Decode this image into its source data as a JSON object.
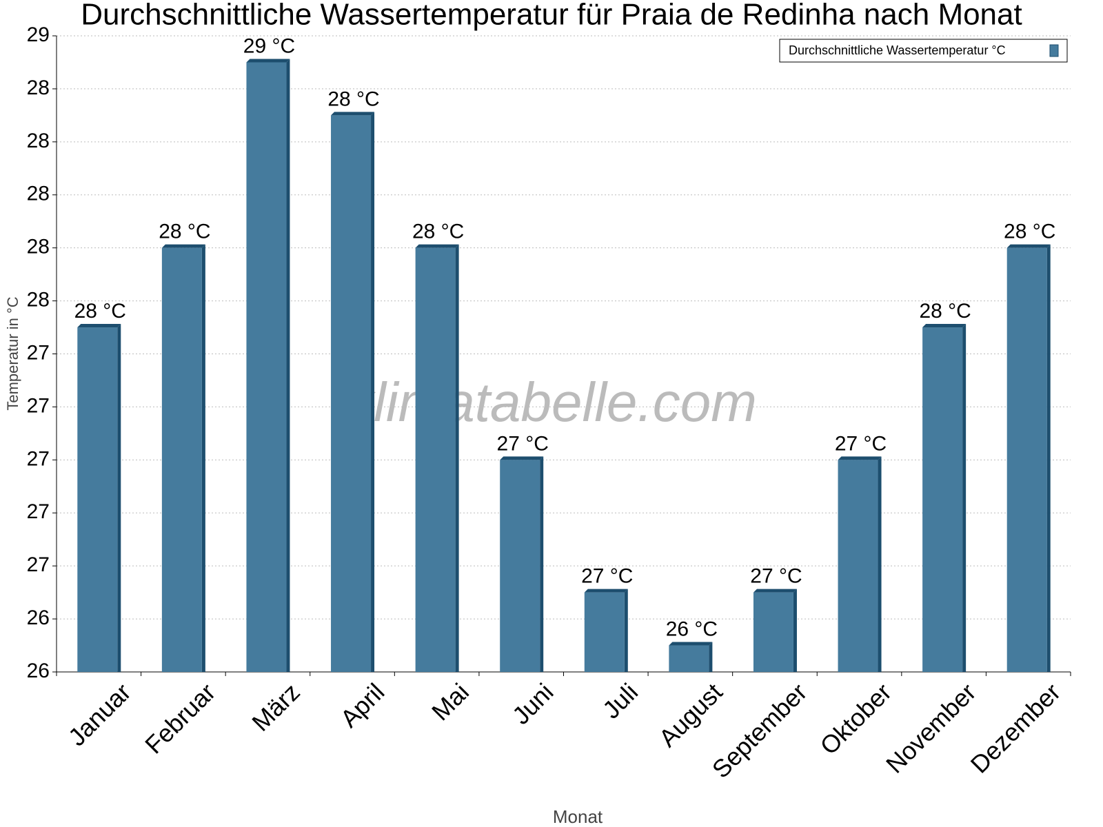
{
  "chart_data": {
    "type": "bar",
    "title": "Durchschnittliche Wassertemperatur für Praia de Redinha nach Monat",
    "x_label": "Monat",
    "y_label": "Temperatur in °C",
    "watermark": "klimatabelle.com",
    "categories": [
      "Januar",
      "Februar",
      "März",
      "April",
      "Mai",
      "Juni",
      "Juli",
      "August",
      "September",
      "Oktober",
      "November",
      "Dezember"
    ],
    "series": [
      {
        "name": "Durchschnittliche Wassertemperatur °C",
        "color": "#457b9d",
        "values": [
          27.5,
          27.8,
          28.5,
          28.3,
          27.8,
          27.0,
          26.5,
          26.3,
          26.5,
          27.0,
          27.5,
          27.8
        ],
        "value_labels": [
          "28 °C",
          "28 °C",
          "29 °C",
          "28 °C",
          "28 °C",
          "27 °C",
          "27 °C",
          "26 °C",
          "27 °C",
          "27 °C",
          "28 °C",
          "28 °C"
        ]
      }
    ],
    "ylim": [
      26.2,
      28.6
    ],
    "yticks": [
      {
        "value": 26.2,
        "label": "26"
      },
      {
        "value": 26.4,
        "label": "26"
      },
      {
        "value": 26.6,
        "label": "27"
      },
      {
        "value": 26.8,
        "label": "27"
      },
      {
        "value": 27.0,
        "label": "27"
      },
      {
        "value": 27.2,
        "label": "27"
      },
      {
        "value": 27.4,
        "label": "27"
      },
      {
        "value": 27.6,
        "label": "28"
      },
      {
        "value": 27.8,
        "label": "28"
      },
      {
        "value": 28.0,
        "label": "28"
      },
      {
        "value": 28.2,
        "label": "28"
      },
      {
        "value": 28.4,
        "label": "28"
      },
      {
        "value": 28.6,
        "label": "29"
      }
    ],
    "grid": true,
    "legend": "top-right"
  }
}
